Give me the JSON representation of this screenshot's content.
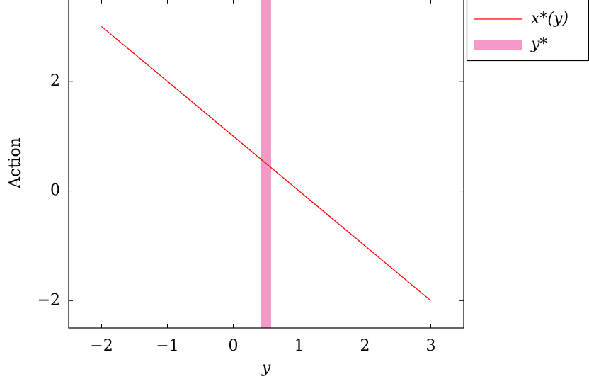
{
  "chart_data": {
    "type": "line",
    "xlabel": "y",
    "ylabel": "Action",
    "series": [
      {
        "name": "x*(y)",
        "color": "#ff0000",
        "x": [
          -2,
          3
        ],
        "values": [
          3,
          -2
        ]
      }
    ],
    "vlines": [
      {
        "name": "y*",
        "color": "#f49ac9",
        "x": 0.5
      }
    ],
    "xlim": [
      -2.5,
      3.5
    ],
    "ylim": [
      -2.5,
      3.5
    ],
    "xticks": [
      {
        "value": -2,
        "label": "−2"
      },
      {
        "value": -1,
        "label": "−1"
      },
      0,
      1,
      2,
      3
    ],
    "yticks": [
      {
        "value": -2,
        "label": "−2"
      },
      0,
      2
    ],
    "legend": "outside-top-right",
    "grid": false
  }
}
